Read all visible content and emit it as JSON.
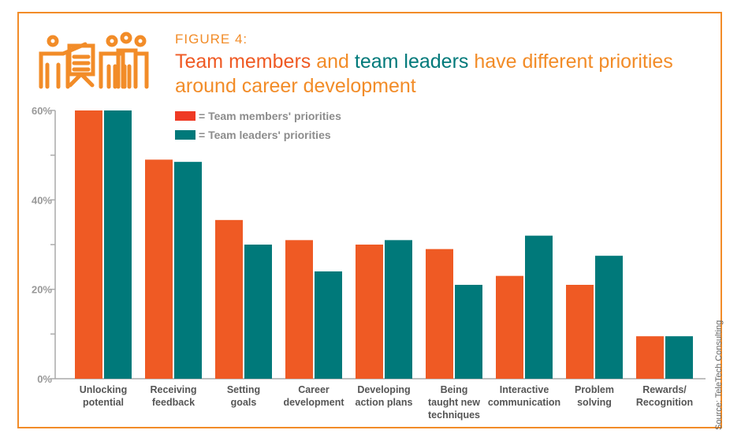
{
  "figure_label": "FIGURE 4:",
  "title": {
    "part1": "Team members",
    "part2": " and ",
    "part3": "team leaders",
    "part4": " have different priorities around career development"
  },
  "source": "Source: TeleTech Consulting",
  "icon": "people-presentation-icon",
  "colors": {
    "members": "#ef5a24",
    "leaders": "#00797a",
    "accent": "#f28c28"
  },
  "chart_data": {
    "type": "bar",
    "categories": [
      [
        "Unlocking",
        "potential"
      ],
      [
        "Receiving",
        "feedback"
      ],
      [
        "Setting",
        "goals"
      ],
      [
        "Career",
        "development"
      ],
      [
        "Developing",
        "action plans"
      ],
      [
        "Being",
        "taught new",
        "techniques"
      ],
      [
        "Interactive",
        "communication"
      ],
      [
        "Problem",
        "solving"
      ],
      [
        "Rewards/",
        "Recognition"
      ]
    ],
    "series": [
      {
        "name": "= Team members' priorities",
        "values": [
          60,
          49,
          35.5,
          31,
          30,
          29,
          23,
          21,
          9.5
        ]
      },
      {
        "name": "= Team leaders' priorities",
        "values": [
          60,
          48.5,
          30,
          24,
          31,
          21,
          32,
          27.5,
          9.5
        ]
      }
    ],
    "yticks": [
      "0%",
      "20%",
      "40%",
      "60%"
    ],
    "ylim": [
      0,
      60
    ],
    "legend": "top-left"
  }
}
